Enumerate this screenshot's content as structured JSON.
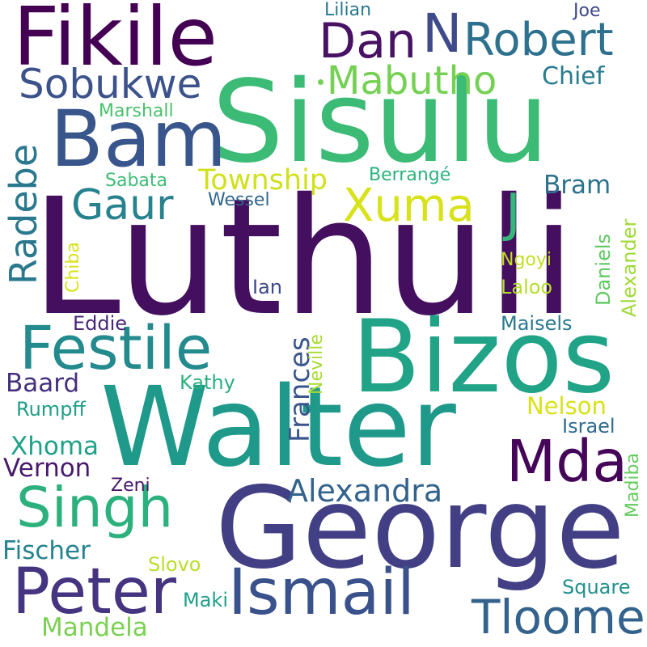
{
  "words": [
    {
      "text": "Luthuli",
      "color": "#440f5f"
    },
    {
      "text": "Sisulu",
      "color": "#3bbb75"
    },
    {
      "text": "Walter",
      "color": "#1f998a"
    },
    {
      "text": "George",
      "color": "#423f85"
    },
    {
      "text": "Bizos",
      "color": "#20a386"
    },
    {
      "text": "Fikile",
      "color": "#440154"
    },
    {
      "text": "Bam",
      "color": "#39568c"
    },
    {
      "text": "Festile",
      "color": "#238a8d"
    },
    {
      "text": "Ismail",
      "color": "#3a528b"
    },
    {
      "text": "Peter",
      "color": "#453581"
    },
    {
      "text": "Mda",
      "color": "#450559"
    },
    {
      "text": "Singh",
      "color": "#2cb17e"
    },
    {
      "text": "Tloome",
      "color": "#33638d"
    },
    {
      "text": "Robert",
      "color": "#2d718e"
    },
    {
      "text": "Dan",
      "color": "#471164"
    },
    {
      "text": "N",
      "color": "#3e4a89"
    },
    {
      "text": "Sobukwe",
      "color": "#3b528b"
    },
    {
      "text": "Mabutho",
      "color": "#75d054"
    },
    {
      "text": "Xuma",
      "color": "#d8e219"
    },
    {
      "text": "Gaur",
      "color": "#26828e"
    },
    {
      "text": "J",
      "color": "#35b779"
    },
    {
      "text": "Radebe",
      "color": "#2a788e"
    },
    {
      "text": "Alexandra",
      "color": "#33638d"
    },
    {
      "text": "Township",
      "color": "#d0e11c"
    },
    {
      "text": "Nelson",
      "color": "#d8e219"
    },
    {
      "text": "Frances",
      "color": "#39568c"
    },
    {
      "text": "Chief",
      "color": "#287d8e"
    },
    {
      "text": "Bram",
      "color": "#2c728e"
    },
    {
      "text": "Xhoma",
      "color": "#1fa188"
    },
    {
      "text": "Vernon",
      "color": "#481a6c"
    },
    {
      "text": "Mandela",
      "color": "#7ad151"
    },
    {
      "text": "Fischer",
      "color": "#25848e"
    },
    {
      "text": "Baard",
      "color": "#46307e"
    },
    {
      "text": "Alexander",
      "color": "#a0da39"
    },
    {
      "text": "Daniels",
      "color": "#5ec962"
    },
    {
      "text": "Madiba",
      "color": "#65cb5e"
    },
    {
      "text": "Neville",
      "color": "#a8db34"
    },
    {
      "text": "Square",
      "color": "#21918c"
    },
    {
      "text": "Lilian",
      "color": "#2a788e"
    },
    {
      "text": "Joe",
      "color": "#3e4989"
    },
    {
      "text": "Marshall",
      "color": "#4ac16d"
    },
    {
      "text": "Sabata",
      "color": "#3dbc74"
    },
    {
      "text": "Berrangé",
      "color": "#2db27d"
    },
    {
      "text": "Wessel",
      "color": "#31668e"
    },
    {
      "text": "Chiba",
      "color": "#d8e219"
    },
    {
      "text": "Ngoyi",
      "color": "#c2df23"
    },
    {
      "text": "Laloo",
      "color": "#b5de2b"
    },
    {
      "text": "Ian",
      "color": "#3e4989"
    },
    {
      "text": "Eddie",
      "color": "#482677"
    },
    {
      "text": "Maisels",
      "color": "#2a788e"
    },
    {
      "text": "Kathy",
      "color": "#2ab07f"
    },
    {
      "text": "Rumpff",
      "color": "#1f9e89"
    },
    {
      "text": "Israel",
      "color": "#2f6c8e"
    },
    {
      "text": "Zeni",
      "color": "#48186a"
    },
    {
      "text": "Slovo",
      "color": "#b8de29"
    },
    {
      "text": "Maki",
      "color": "#1fa088"
    }
  ]
}
